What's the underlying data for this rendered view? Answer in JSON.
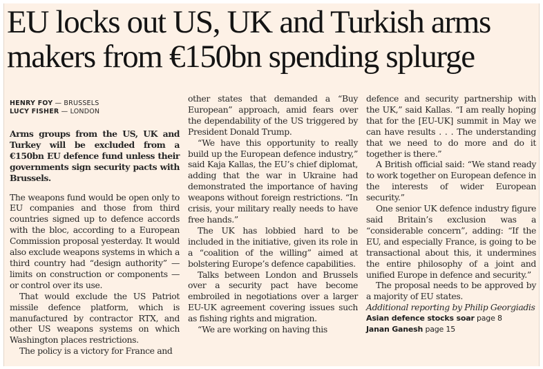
{
  "headline": "EU locks out US, UK and Turkish arms makers from €150bn spending splurge",
  "bylines": [
    {
      "name": "HENRY FOY",
      "sep": " — ",
      "location": "BRUSSELS"
    },
    {
      "name": "LUCY FISHER",
      "sep": " — ",
      "location": "LONDON"
    }
  ],
  "standfirst": "Arms groups from the US, UK and Turkey will be excluded from a €150bn EU defence fund unless their governments sign security pacts with Brussels.",
  "column1": [
    "The weapons fund would be open only to EU companies and those from third countries signed up to defence accords with the bloc, according to a European Commission proposal yesterday. It would also exclude weapons systems in which a third country had “design authority” — limits on construction or components — or control over its use.",
    "That would exclude the US Patriot missile defence platform, which is manufactured by contractor RTX, and other US weapons systems on which Washington places restrictions.",
    "The policy is a victory for France and"
  ],
  "column2": [
    "other states that demanded a “Buy European” approach, amid fears over the dependability of the US triggered by President Donald Trump.",
    "“We have this opportunity to really build up the European defence industry,” said Kaja Kallas, the EU’s chief diplomat, adding that the war in Ukraine had demonstrated the importance of having weapons without foreign restrictions. “In crisis, your military really needs to have free hands.”",
    "The UK has lobbied hard to be included in the initiative, given its role in a “coalition of the willing” aimed at bolstering Europe’s defence capabilities.",
    "Talks between London and Brussels over a security pact have become embroiled in negotiations over a larger EU-UK agreement covering issues such as fishing rights and migration.",
    "“We are working on having this"
  ],
  "column3": [
    "defence and security partnership with the UK,” said Kallas. “I am really hoping that for the [EU-UK] summit in May we can have results . . . The understanding that we need to do more and do it together is there.”",
    "A British official said: “We stand ready to work together on European defence in the interests of wider European security.”",
    "One senior UK defence industry figure said Britain’s exclusion was a “considerable concern”, adding: “If the EU, and especially France, is going to be transactional about this, it undermines the entire philosophy of a joint and unified Europe in defence and security.”",
    "The proposal needs to be approved by a majority of EU states."
  ],
  "credit": "Additional reporting by Philip Georgiadis",
  "cross_refs": [
    {
      "label": "Asian defence stocks soar",
      "page": "page 8"
    },
    {
      "label": "Janan Ganesh",
      "page": "page 15"
    }
  ]
}
